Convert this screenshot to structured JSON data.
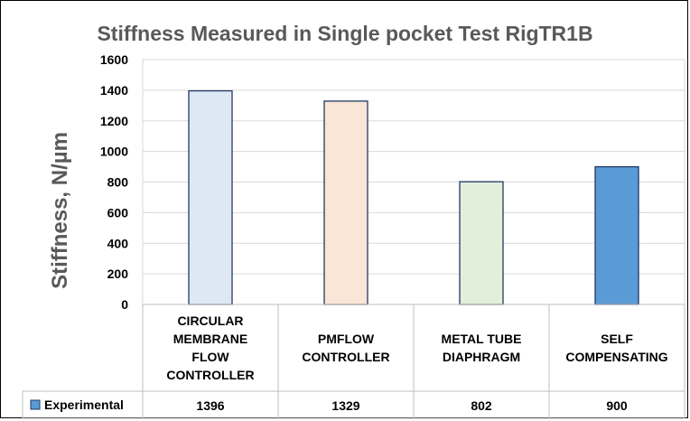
{
  "chart_data": {
    "type": "bar",
    "title": "Stiffness Measured in Single pocket Test RigTR1B",
    "ylabel": "Stiffness, N/µm",
    "xlabel": "",
    "ylim": [
      0,
      1600
    ],
    "yticks": [
      0,
      200,
      400,
      600,
      800,
      1000,
      1200,
      1400,
      1600
    ],
    "grid": true,
    "legend_position": "data-table-left",
    "categories": [
      [
        "CIRCULAR",
        "MEMBRANE",
        "FLOW",
        "CONTROLLER"
      ],
      [
        "PMFLOW",
        "CONTROLLER"
      ],
      [
        "METAL TUBE",
        "DIAPHRAGM"
      ],
      [
        "SELF",
        "COMPENSATING"
      ]
    ],
    "bar_colors": [
      "#dee8f5",
      "#fbe5d6",
      "#e2efda",
      "#5b9bd5"
    ],
    "series": [
      {
        "name": "Experimental",
        "values": [
          1396,
          1329,
          802,
          900
        ],
        "legend_color": "#5b9bd5"
      }
    ]
  }
}
